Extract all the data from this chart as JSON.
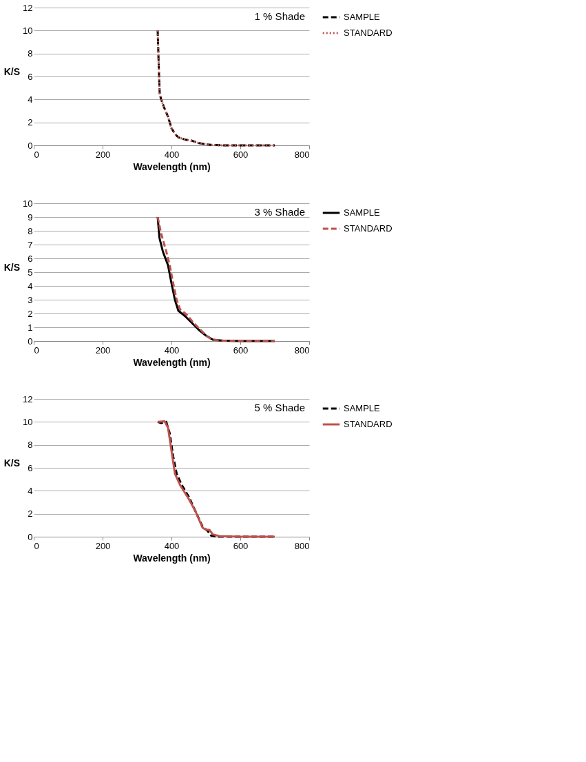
{
  "chart_data": [
    {
      "type": "line",
      "title": "1 % Shade",
      "xlabel": "Wavelength (nm)",
      "ylabel": "K/S",
      "xlim": [
        0,
        800
      ],
      "xticks": [
        0,
        200,
        400,
        600,
        800
      ],
      "ylim": [
        0,
        12
      ],
      "yticks": [
        0,
        2,
        4,
        6,
        8,
        10,
        12
      ],
      "grid": "y",
      "legend": "right",
      "marker": "none",
      "series": [
        {
          "name": "SAMPLE",
          "color": "#000000",
          "line_style": "dashed",
          "x": [
            360,
            362,
            364,
            366,
            370,
            380,
            390,
            400,
            410,
            420,
            440,
            460,
            480,
            500,
            520,
            550,
            600,
            700
          ],
          "values": [
            10,
            8,
            6,
            4.5,
            4,
            3.2,
            2.5,
            1.5,
            1,
            0.7,
            0.5,
            0.4,
            0.2,
            0.1,
            0.03,
            0,
            0,
            0
          ]
        },
        {
          "name": "STANDARD",
          "color": "#c0504d",
          "line_style": "dotted",
          "x": [
            360,
            362,
            364,
            366,
            370,
            380,
            390,
            400,
            410,
            420,
            440,
            460,
            480,
            500,
            520,
            550,
            600,
            700
          ],
          "values": [
            10,
            8,
            6,
            4.5,
            4,
            3.2,
            2.5,
            1.5,
            1,
            0.7,
            0.5,
            0.4,
            0.2,
            0.1,
            0.03,
            0,
            0,
            0
          ]
        }
      ]
    },
    {
      "type": "line",
      "title": "3 % Shade",
      "xlabel": "Wavelength (nm)",
      "ylabel": "K/S",
      "xlim": [
        0,
        800
      ],
      "xticks": [
        0,
        200,
        400,
        600,
        800
      ],
      "ylim": [
        0,
        10
      ],
      "yticks": [
        0,
        1,
        2,
        3,
        4,
        5,
        6,
        7,
        8,
        9,
        10
      ],
      "grid": "y",
      "legend": "right",
      "marker": "none",
      "series": [
        {
          "name": "SAMPLE",
          "color": "#000000",
          "line_style": "solid",
          "x": [
            360,
            365,
            375,
            390,
            400,
            410,
            420,
            440,
            460,
            480,
            500,
            520,
            550,
            600,
            700
          ],
          "values": [
            9,
            7.5,
            6.5,
            5.5,
            4.2,
            3,
            2.2,
            1.8,
            1.3,
            0.8,
            0.4,
            0.1,
            0.02,
            0,
            0
          ]
        },
        {
          "name": "STANDARD",
          "color": "#c0504d",
          "line_style": "dashed",
          "x": [
            360,
            370,
            385,
            395,
            405,
            415,
            425,
            445,
            465,
            485,
            505,
            520,
            550,
            600,
            700
          ],
          "values": [
            9,
            7.8,
            6.5,
            5.5,
            4.2,
            3,
            2.3,
            1.9,
            1.3,
            0.8,
            0.3,
            0.1,
            0.02,
            0,
            0
          ]
        }
      ]
    },
    {
      "type": "line",
      "title": "5 % Shade",
      "xlabel": "Wavelength (nm)",
      "ylabel": "K/S",
      "xlim": [
        0,
        800
      ],
      "xticks": [
        0,
        200,
        400,
        600,
        800
      ],
      "ylim": [
        0,
        12
      ],
      "yticks": [
        0,
        2,
        4,
        6,
        8,
        10,
        12
      ],
      "grid": "y",
      "legend": "right",
      "marker": "none",
      "series": [
        {
          "name": "SAMPLE",
          "color": "#000000",
          "line_style": "dashed",
          "x": [
            360,
            370,
            385,
            395,
            405,
            415,
            430,
            450,
            470,
            490,
            505,
            515,
            530,
            600,
            700
          ],
          "values": [
            10,
            9.9,
            10,
            9,
            7,
            5.5,
            4.5,
            3.5,
            2.2,
            0.9,
            0.5,
            0.1,
            0,
            0,
            0
          ]
        },
        {
          "name": "STANDARD",
          "color": "#c0504d",
          "line_style": "solid",
          "x": [
            360,
            380,
            390,
            400,
            410,
            425,
            450,
            470,
            490,
            500,
            510,
            520,
            540,
            600,
            700
          ],
          "values": [
            10,
            10.05,
            9.5,
            7.5,
            5.5,
            4.5,
            3.3,
            2.2,
            0.8,
            0.6,
            0.6,
            0.2,
            0.05,
            0,
            0
          ]
        }
      ]
    }
  ]
}
